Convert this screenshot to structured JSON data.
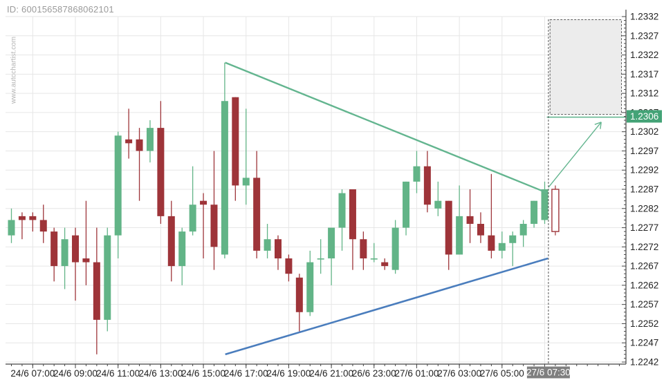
{
  "header": {
    "id_label": "ID: 600156587868062101"
  },
  "watermark": {
    "text": "www.autochartist.com"
  },
  "colors": {
    "bull_candle": "#62b487",
    "bear_candle": "#9e3439",
    "pattern_line": "#63b58f",
    "support_line": "#4a7dbd",
    "forecast_box_fill": "#ececec",
    "forecast_box_border": "#5a5a5a",
    "target_tag_bg": "#44a377",
    "time_tag_bg": "#7f7f7f",
    "grid": "#e6e6e6",
    "axis": "#444444",
    "tick_label": "#222222"
  },
  "chart_data": {
    "type": "candlestick",
    "grid": true,
    "y_axis": {
      "min": 1.2242,
      "max": 1.2332,
      "tick_step": 0.0005,
      "minor_tick_step": 0.0001,
      "labels": [
        "1.2332",
        "1.2327",
        "1.2322",
        "1.2317",
        "1.2312",
        "1.2307",
        "1.2302",
        "1.2297",
        "1.2292",
        "1.2287",
        "1.2282",
        "1.2277",
        "1.2272",
        "1.2267",
        "1.2262",
        "1.2257",
        "1.2252",
        "1.2247",
        "1.2242"
      ]
    },
    "x_axis": {
      "labels": [
        {
          "text": "24/6 07:00",
          "index": 2
        },
        {
          "text": "24/6 09:00",
          "index": 6
        },
        {
          "text": "24/6 11:00",
          "index": 10
        },
        {
          "text": "24/6 13:00",
          "index": 14
        },
        {
          "text": "24/6 15:00",
          "index": 18
        },
        {
          "text": "24/6 17:00",
          "index": 22
        },
        {
          "text": "24/6 19:00",
          "index": 26
        },
        {
          "text": "24/6 21:00",
          "index": 30
        },
        {
          "text": "26/6 23:00",
          "index": 34
        },
        {
          "text": "27/6 01:00",
          "index": 38
        },
        {
          "text": "27/6 03:00",
          "index": 42
        },
        {
          "text": "27/6 05:00",
          "index": 46
        }
      ],
      "gridline_only_indices": [
        50
      ]
    },
    "candles": [
      {
        "t": "24/6 06:00",
        "o": 1.2275,
        "h": 1.2282,
        "l": 1.2273,
        "c": 1.2279
      },
      {
        "t": "24/6 06:30",
        "o": 1.228,
        "h": 1.2281,
        "l": 1.2274,
        "c": 1.2279
      },
      {
        "t": "24/6 07:00",
        "o": 1.228,
        "h": 1.2281,
        "l": 1.2276,
        "c": 1.2279
      },
      {
        "t": "24/6 07:30",
        "o": 1.2279,
        "h": 1.2283,
        "l": 1.2273,
        "c": 1.2276
      },
      {
        "t": "24/6 08:00",
        "o": 1.2276,
        "h": 1.2277,
        "l": 1.2263,
        "c": 1.2267
      },
      {
        "t": "24/6 08:30",
        "o": 1.2267,
        "h": 1.2277,
        "l": 1.2261,
        "c": 1.2274
      },
      {
        "t": "24/6 09:00",
        "o": 1.2275,
        "h": 1.2277,
        "l": 1.2258,
        "c": 1.2268
      },
      {
        "t": "24/6 09:30",
        "o": 1.2269,
        "h": 1.2284,
        "l": 1.2262,
        "c": 1.2268
      },
      {
        "t": "24/6 10:00",
        "o": 1.2268,
        "h": 1.2277,
        "l": 1.2244,
        "c": 1.2253
      },
      {
        "t": "24/6 10:30",
        "o": 1.2253,
        "h": 1.2277,
        "l": 1.225,
        "c": 1.2275
      },
      {
        "t": "24/6 11:00",
        "o": 1.2275,
        "h": 1.2302,
        "l": 1.2269,
        "c": 1.2301
      },
      {
        "t": "24/6 11:30",
        "o": 1.23,
        "h": 1.2308,
        "l": 1.2295,
        "c": 1.2299
      },
      {
        "t": "24/6 12:00",
        "o": 1.23,
        "h": 1.2303,
        "l": 1.2284,
        "c": 1.2297
      },
      {
        "t": "24/6 12:30",
        "o": 1.2297,
        "h": 1.2305,
        "l": 1.2294,
        "c": 1.2303
      },
      {
        "t": "24/6 13:00",
        "o": 1.2303,
        "h": 1.231,
        "l": 1.2278,
        "c": 1.228
      },
      {
        "t": "24/6 13:30",
        "o": 1.228,
        "h": 1.2284,
        "l": 1.2263,
        "c": 1.2267
      },
      {
        "t": "24/6 14:00",
        "o": 1.2267,
        "h": 1.2277,
        "l": 1.2262,
        "c": 1.2276
      },
      {
        "t": "24/6 14:30",
        "o": 1.2276,
        "h": 1.2293,
        "l": 1.2275,
        "c": 1.2283
      },
      {
        "t": "24/6 15:00",
        "o": 1.2284,
        "h": 1.2286,
        "l": 1.2269,
        "c": 1.2283
      },
      {
        "t": "24/6 15:30",
        "o": 1.2283,
        "h": 1.2297,
        "l": 1.2266,
        "c": 1.2272
      },
      {
        "t": "24/6 16:00",
        "o": 1.227,
        "h": 1.232,
        "l": 1.2269,
        "c": 1.231
      },
      {
        "t": "24/6 16:30",
        "o": 1.2311,
        "h": 1.2311,
        "l": 1.2284,
        "c": 1.2288
      },
      {
        "t": "24/6 17:00",
        "o": 1.2288,
        "h": 1.2308,
        "l": 1.2283,
        "c": 1.229
      },
      {
        "t": "24/6 17:30",
        "o": 1.229,
        "h": 1.2297,
        "l": 1.2269,
        "c": 1.2271
      },
      {
        "t": "24/6 18:00",
        "o": 1.2271,
        "h": 1.2278,
        "l": 1.2269,
        "c": 1.2274
      },
      {
        "t": "24/6 18:30",
        "o": 1.2274,
        "h": 1.2275,
        "l": 1.2266,
        "c": 1.2269
      },
      {
        "t": "24/6 19:00",
        "o": 1.2269,
        "h": 1.227,
        "l": 1.2263,
        "c": 1.2265
      },
      {
        "t": "24/6 19:30",
        "o": 1.2264,
        "h": 1.2265,
        "l": 1.225,
        "c": 1.2255
      },
      {
        "t": "24/6 20:00",
        "o": 1.2255,
        "h": 1.2271,
        "l": 1.2254,
        "c": 1.2268
      },
      {
        "t": "24/6 20:30",
        "o": 1.2269,
        "h": 1.2274,
        "l": 1.2265,
        "c": 1.2269
      },
      {
        "t": "24/6 21:00",
        "o": 1.2269,
        "h": 1.2277,
        "l": 1.2262,
        "c": 1.2277
      },
      {
        "t": "24/6 21:30",
        "o": 1.2277,
        "h": 1.2287,
        "l": 1.2271,
        "c": 1.2286
      },
      {
        "t": "24/6 22:00",
        "o": 1.2287,
        "h": 1.2287,
        "l": 1.2266,
        "c": 1.2274
      },
      {
        "t": "24/6 22:30",
        "o": 1.2274,
        "h": 1.2276,
        "l": 1.2266,
        "c": 1.2269
      },
      {
        "t": "26/6 23:00",
        "o": 1.2269,
        "h": 1.2273,
        "l": 1.2268,
        "c": 1.2269
      },
      {
        "t": "26/6 23:30",
        "o": 1.2268,
        "h": 1.2269,
        "l": 1.2266,
        "c": 1.2267
      },
      {
        "t": "27/6 00:00",
        "o": 1.2266,
        "h": 1.2279,
        "l": 1.2265,
        "c": 1.2277
      },
      {
        "t": "27/6 00:30",
        "o": 1.2277,
        "h": 1.2289,
        "l": 1.2275,
        "c": 1.2289
      },
      {
        "t": "27/6 01:00",
        "o": 1.2289,
        "h": 1.2297,
        "l": 1.2286,
        "c": 1.2293
      },
      {
        "t": "27/6 01:30",
        "o": 1.2293,
        "h": 1.2297,
        "l": 1.2281,
        "c": 1.2283
      },
      {
        "t": "27/6 02:00",
        "o": 1.2282,
        "h": 1.2289,
        "l": 1.228,
        "c": 1.2284
      },
      {
        "t": "27/6 02:30",
        "o": 1.2284,
        "h": 1.2284,
        "l": 1.2266,
        "c": 1.227
      },
      {
        "t": "27/6 03:00",
        "o": 1.227,
        "h": 1.2288,
        "l": 1.227,
        "c": 1.228
      },
      {
        "t": "27/6 03:30",
        "o": 1.228,
        "h": 1.2287,
        "l": 1.2273,
        "c": 1.2278
      },
      {
        "t": "27/6 04:00",
        "o": 1.2278,
        "h": 1.2281,
        "l": 1.2273,
        "c": 1.2275
      },
      {
        "t": "27/6 04:30",
        "o": 1.2275,
        "h": 1.2291,
        "l": 1.2269,
        "c": 1.2271
      },
      {
        "t": "27/6 05:00",
        "o": 1.2271,
        "h": 1.2276,
        "l": 1.2269,
        "c": 1.2273
      },
      {
        "t": "27/6 05:30",
        "o": 1.2273,
        "h": 1.2276,
        "l": 1.2267,
        "c": 1.2275
      },
      {
        "t": "27/6 06:00",
        "o": 1.2275,
        "h": 1.2279,
        "l": 1.2272,
        "c": 1.2278
      },
      {
        "t": "27/6 06:30",
        "o": 1.2278,
        "h": 1.2284,
        "l": 1.2277,
        "c": 1.2284
      },
      {
        "t": "27/6 07:00",
        "o": 1.2279,
        "h": 1.2289,
        "l": 1.2278,
        "c": 1.2287
      }
    ],
    "forming_candle": {
      "t": "27/6 07:30",
      "o": 1.2287,
      "h": 1.2288,
      "l": 1.2275,
      "c": 1.2276,
      "style": "hollow"
    },
    "pattern": {
      "name": "descending-triangle-lines",
      "resistance": {
        "from": {
          "index": 20.05,
          "price": 1.232
        },
        "to": {
          "index": 50.3,
          "price": 1.2286
        }
      },
      "support": {
        "from": {
          "index": 20.05,
          "price": 1.2244
        },
        "to": {
          "index": 50.3,
          "price": 1.2269
        }
      }
    },
    "forecast": {
      "target_price_label": "1.2306",
      "target_price": 1.2306,
      "target_line": {
        "from_index": 50.2,
        "to_index": 57.7,
        "price": 1.23058
      },
      "box": {
        "from_index": 50.5,
        "to_index": 57.2,
        "top_price": 1.23312,
        "bottom_price": 1.23065
      },
      "arrow": {
        "from": {
          "index": 50.35,
          "price": 1.22875
        },
        "to": {
          "index": 55.3,
          "price": 1.23045
        }
      }
    },
    "current_time_marker": {
      "index": 50.35,
      "label": "27/6 07:30"
    }
  }
}
